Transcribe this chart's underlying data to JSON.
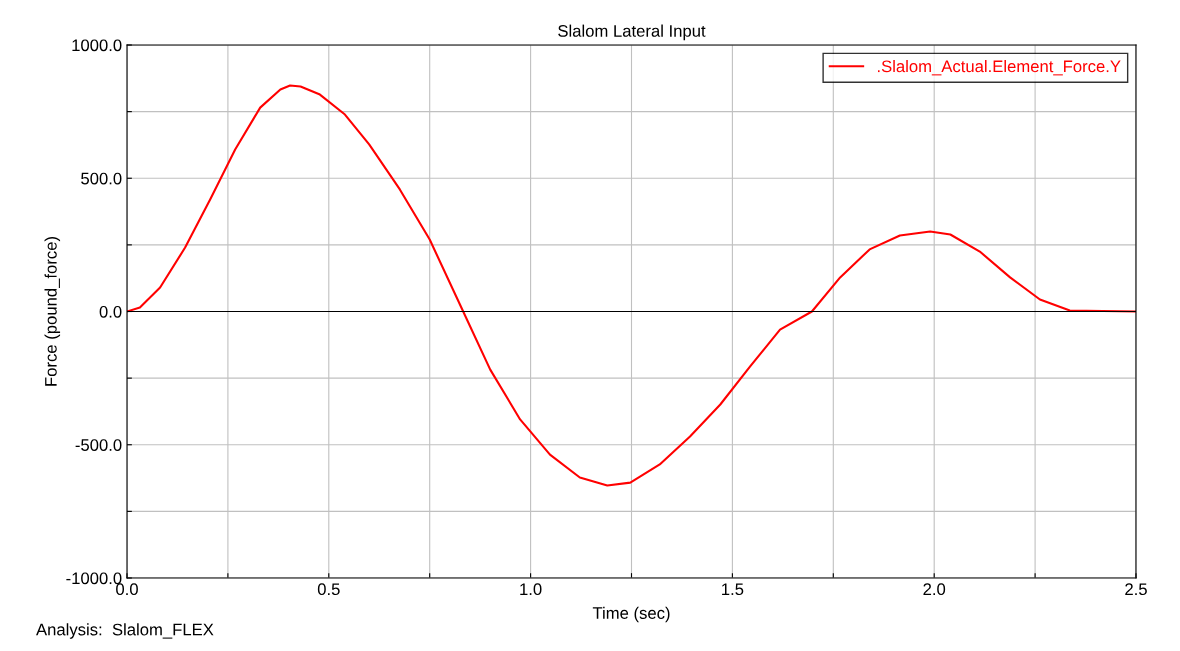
{
  "chart_data": {
    "type": "line",
    "title": "Slalom Lateral Input",
    "xlabel": "Time (sec)",
    "ylabel": "Force (pound_force)",
    "annotations": [
      "Analysis:  Slalom_FLEX"
    ],
    "x": [
      0,
      0.032,
      0.082,
      0.144,
      0.206,
      0.268,
      0.33,
      0.38,
      0.404,
      0.43,
      0.478,
      0.54,
      0.6,
      0.676,
      0.75,
      0.833,
      0.9,
      0.974,
      1.048,
      1.122,
      1.19,
      1.247,
      1.32,
      1.395,
      1.47,
      1.544,
      1.618,
      1.697,
      1.767,
      1.84,
      1.915,
      1.99,
      2.04,
      2.113,
      2.188,
      2.262,
      2.336,
      2.5
    ],
    "series": [
      {
        "name": ".Slalom_Actual.Element_Force.Y",
        "color": "#ff0000",
        "values": [
          0,
          15,
          90,
          240,
          420,
          608,
          765,
          833,
          848,
          844,
          814,
          739,
          627,
          458,
          270,
          0,
          -218,
          -405,
          -537,
          -623,
          -653,
          -642,
          -574,
          -469,
          -349,
          -206,
          -68,
          0,
          128,
          233,
          285,
          300,
          289,
          225,
          128,
          45,
          4,
          0
        ]
      }
    ],
    "xlim": [
      0,
      2.5
    ],
    "ylim": [
      -1000,
      1000
    ],
    "xticks": [
      {
        "value": 0,
        "label": "0.0"
      },
      {
        "value": 0.25,
        "label": null
      },
      {
        "value": 0.5,
        "label": "0.5"
      },
      {
        "value": 0.75,
        "label": null
      },
      {
        "value": 1.0,
        "label": "1.0"
      },
      {
        "value": 1.25,
        "label": null
      },
      {
        "value": 1.5,
        "label": "1.5"
      },
      {
        "value": 1.75,
        "label": null
      },
      {
        "value": 2.0,
        "label": "2.0"
      },
      {
        "value": 2.25,
        "label": null
      },
      {
        "value": 2.5,
        "label": "2.5"
      }
    ],
    "yticks": [
      {
        "value": -1000,
        "label": "-1000.0"
      },
      {
        "value": -750,
        "label": null
      },
      {
        "value": -500,
        "label": "-500.0"
      },
      {
        "value": -250,
        "label": null
      },
      {
        "value": 0,
        "label": "0.0"
      },
      {
        "value": 250,
        "label": null
      },
      {
        "value": 500,
        "label": "500.0"
      },
      {
        "value": 750,
        "label": null
      },
      {
        "value": 1000,
        "label": "1000.0"
      }
    ],
    "ref_lines": [
      {
        "axis": "y",
        "value": 0,
        "color": "#000000"
      }
    ],
    "grid": true,
    "legend": "top right",
    "marker": "none",
    "line_style": "solid"
  }
}
